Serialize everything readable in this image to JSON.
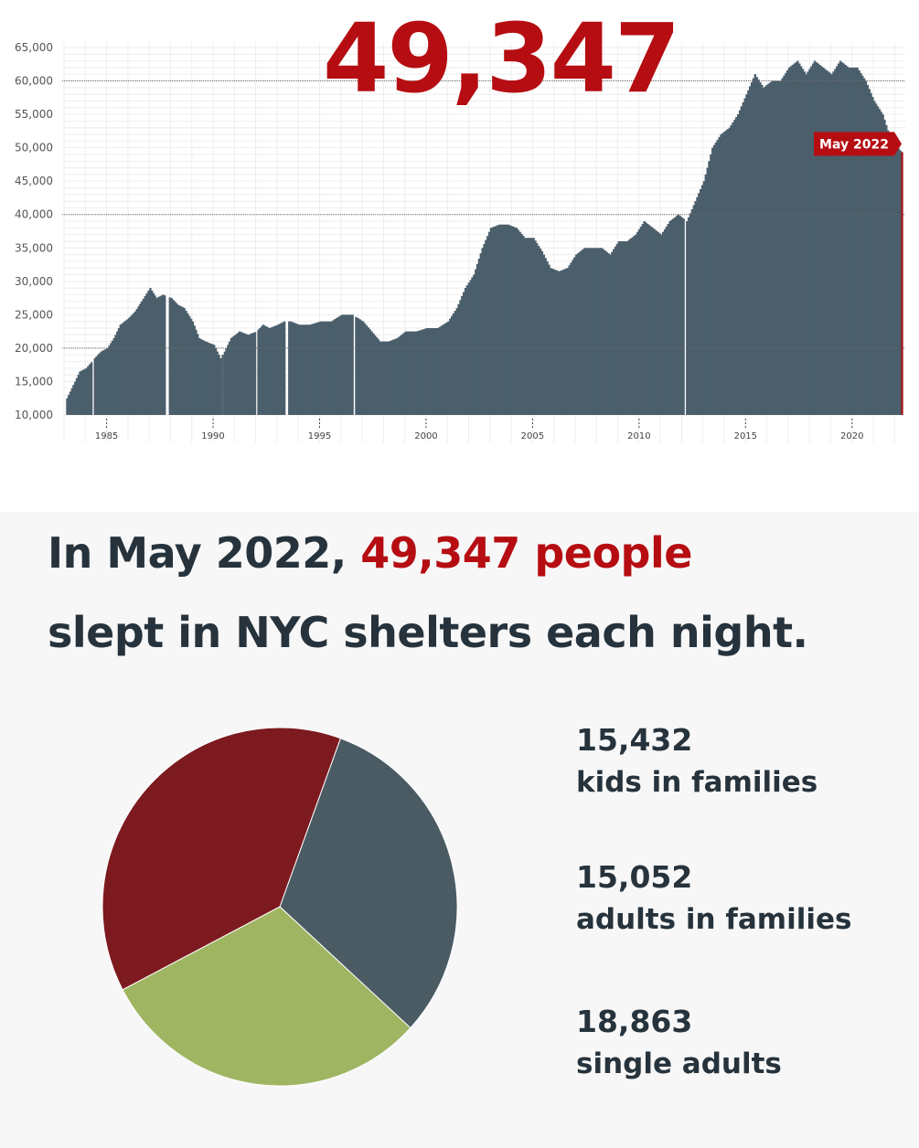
{
  "headline_number": "49,347",
  "badge": "May 2022",
  "headline": {
    "line1_prefix": "In May 2022, ",
    "line1_accent": "49,347 people",
    "line2": "slept in NYC shelters each night."
  },
  "colors": {
    "accent": "#b50d12",
    "area": "#4b5e6b",
    "kids": "#4a5b64",
    "adults_families": "#9fb562",
    "singles": "#7c1a20",
    "text": "#26333c"
  },
  "stats": [
    {
      "value": "15,432",
      "label": "kids in families"
    },
    {
      "value": "15,052",
      "label": "adults in families"
    },
    {
      "value": "18,863",
      "label": "single adults"
    }
  ],
  "chart_data": [
    {
      "type": "area",
      "title": "",
      "xlabel": "",
      "ylabel": "",
      "xlim": [
        1983,
        2022.5
      ],
      "ylim": [
        10000,
        65000
      ],
      "x_ticks": [
        "1985",
        "1990",
        "1995",
        "2000",
        "2005",
        "2010",
        "2015",
        "2020"
      ],
      "y_ticks": [
        "65,000",
        "60,000",
        "55,000",
        "50,000",
        "45,000",
        "40,000",
        "35,000",
        "30,000",
        "25,000",
        "20,000",
        "15,000",
        "10,000"
      ],
      "grid": true,
      "highlight_label": "May 2022",
      "highlight_value": 49347,
      "series": [
        {
          "x": [
            1983.1,
            1983.4,
            1983.7,
            1984.0,
            1984.4,
            1984.7,
            1985.0,
            1985.3,
            1985.6,
            1986.0,
            1986.3,
            1986.6,
            1987.0,
            1987.3,
            1987.6,
            1988.0,
            1988.3,
            1988.6,
            1989.0,
            1989.3,
            1989.6,
            1990.0,
            1990.3,
            1990.5,
            1990.8,
            1991.2,
            1991.6,
            1992.0,
            1992.3,
            1992.6,
            1993.0,
            1993.3,
            1993.6,
            1994.0,
            1994.5,
            1995.0,
            1995.5,
            1996.0,
            1996.5,
            1997.0,
            1997.4,
            1997.8,
            1998.2,
            1998.6,
            1999.0,
            1999.5,
            2000.0,
            2000.5,
            2001.0,
            2001.4,
            2001.8,
            2002.2,
            2002.6,
            2003.0,
            2003.4,
            2003.8,
            2004.2,
            2004.6,
            2005.0,
            2005.4,
            2005.8,
            2006.2,
            2006.6,
            2007.0,
            2007.4,
            2007.8,
            2008.2,
            2008.6,
            2009.0,
            2009.4,
            2009.8,
            2010.2,
            2010.6,
            2011.0,
            2011.4,
            2011.8,
            2012.2,
            2012.6,
            2013.0,
            2013.4,
            2013.8,
            2014.2,
            2014.6,
            2015.0,
            2015.4,
            2015.8,
            2016.2,
            2016.6,
            2017.0,
            2017.4,
            2017.8,
            2018.2,
            2018.6,
            2019.0,
            2019.4,
            2019.8,
            2020.2,
            2020.6,
            2021.0,
            2021.4,
            2021.8,
            2022.3
          ],
          "values": [
            12500,
            14500,
            16500,
            17000,
            18500,
            19500,
            20000,
            21500,
            23500,
            24500,
            25500,
            27000,
            29000,
            27500,
            28000,
            27500,
            26500,
            26000,
            24000,
            21500,
            21000,
            20500,
            18500,
            19500,
            21500,
            22500,
            22000,
            22500,
            23500,
            23000,
            23500,
            24000,
            24000,
            23500,
            23500,
            24000,
            24000,
            25000,
            25000,
            24000,
            22500,
            21000,
            21000,
            21500,
            22500,
            22500,
            23000,
            23000,
            24000,
            26000,
            29000,
            31000,
            35000,
            38000,
            38500,
            38500,
            38000,
            36500,
            36500,
            34500,
            32000,
            31500,
            32000,
            34000,
            35000,
            35000,
            35000,
            34000,
            36000,
            36000,
            37000,
            39000,
            38000,
            37000,
            39000,
            40000,
            39000,
            42000,
            45000,
            50000,
            52000,
            53000,
            55000,
            58000,
            61000,
            59000,
            60000,
            60000,
            62000,
            63000,
            61000,
            63000,
            62000,
            61000,
            63000,
            62000,
            62000,
            60000,
            57000,
            55000,
            51000,
            49347
          ]
        }
      ]
    },
    {
      "type": "pie",
      "labels": [
        "kids in families",
        "adults in families",
        "single adults"
      ],
      "values": [
        15432,
        15052,
        18863
      ]
    }
  ]
}
